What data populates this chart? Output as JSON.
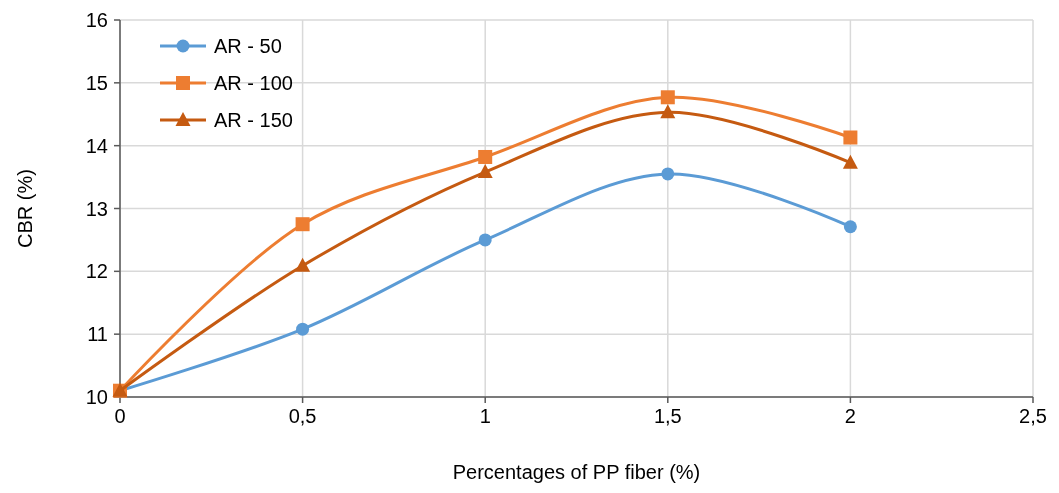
{
  "chart_data": {
    "type": "line",
    "xlabel": "Percentages of PP fiber (%)",
    "ylabel": "CBR (%)",
    "x": [
      0,
      0.5,
      1,
      1.5,
      2
    ],
    "xlim": [
      0,
      2.5
    ],
    "xticks": [
      0,
      {
        "value": 0.5,
        "label": "0,5"
      },
      1,
      {
        "value": 1.5,
        "label": "1,5"
      },
      2,
      {
        "value": 2.5,
        "label": "2,5"
      }
    ],
    "ylim": [
      10,
      16
    ],
    "yticks": [
      10,
      11,
      12,
      13,
      14,
      15,
      16
    ],
    "grid": true,
    "legend": "top left",
    "marker": "circle",
    "line_style": "solid",
    "series": [
      {
        "name": "AR - 50",
        "color": "#5b9bd5",
        "marker": "circle",
        "values": [
          10.1,
          11.08,
          12.5,
          13.55,
          12.71
        ]
      },
      {
        "name": "AR - 100",
        "color": "#ed7d31",
        "marker": "square",
        "values": [
          10.1,
          12.75,
          13.82,
          14.77,
          14.13
        ]
      },
      {
        "name": "AR - 150",
        "color": "#c55a11",
        "marker": "triangle",
        "values": [
          10.1,
          12.09,
          13.58,
          14.53,
          13.73
        ]
      }
    ]
  }
}
